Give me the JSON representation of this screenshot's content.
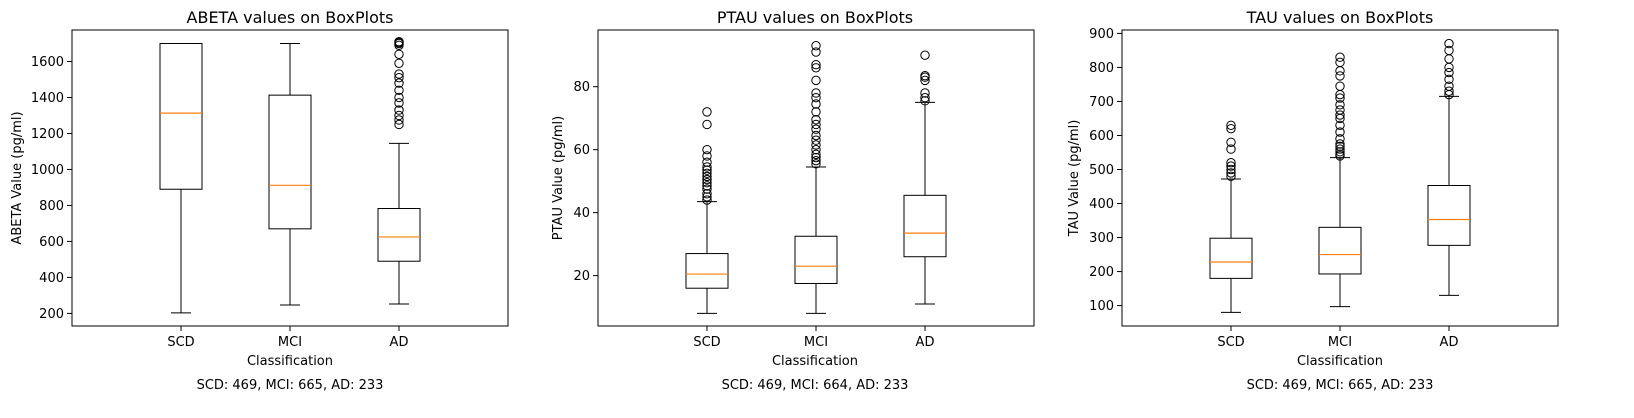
{
  "chart_data": [
    {
      "type": "boxplot",
      "title": "ABETA values on BoxPlots",
      "xlabel": "Classification",
      "ylabel": "ABETA Value (pg/ml)",
      "caption": "SCD: 469, MCI: 665, AD: 233",
      "categories": [
        "SCD",
        "MCI",
        "AD"
      ],
      "ylim": [
        130,
        1775
      ],
      "yticks": [
        200,
        400,
        600,
        800,
        1000,
        1200,
        1400,
        1600
      ],
      "boxes": [
        {
          "category": "SCD",
          "whisker_low": 203,
          "q1": 890,
          "median": 1313,
          "q3": 1700,
          "whisker_high": 1700,
          "outliers": []
        },
        {
          "category": "MCI",
          "whisker_low": 247,
          "q1": 670,
          "median": 912,
          "q3": 1413,
          "whisker_high": 1700,
          "outliers": []
        },
        {
          "category": "AD",
          "whisker_low": 252,
          "q1": 490,
          "median": 625,
          "q3": 783,
          "whisker_high": 1145,
          "outliers": [
            1250,
            1275,
            1300,
            1330,
            1370,
            1400,
            1440,
            1480,
            1510,
            1530,
            1590,
            1640,
            1690,
            1700,
            1705,
            1710
          ]
        }
      ],
      "grid": false,
      "colors": {
        "box": "#000000",
        "median": "#ff7f0e"
      }
    },
    {
      "type": "boxplot",
      "title": "PTAU values on BoxPlots",
      "xlabel": "Classification",
      "ylabel": "PTAU Value (pg/ml)",
      "caption": "SCD: 469, MCI: 664, AD: 233",
      "categories": [
        "SCD",
        "MCI",
        "AD"
      ],
      "ylim": [
        4,
        98
      ],
      "yticks": [
        20,
        40,
        60,
        80
      ],
      "boxes": [
        {
          "category": "SCD",
          "whisker_low": 8,
          "q1": 16,
          "median": 20.5,
          "q3": 27,
          "whisker_high": 43.5,
          "outliers": [
            44,
            45,
            46,
            47.5,
            48.5,
            49.5,
            50.5,
            51.5,
            52.5,
            53.5,
            54.5,
            56,
            58,
            60,
            68,
            72
          ]
        },
        {
          "category": "MCI",
          "whisker_low": 8,
          "q1": 17.5,
          "median": 23,
          "q3": 32.5,
          "whisker_high": 54.5,
          "outliers": [
            55.5,
            56.5,
            57.5,
            58.5,
            60,
            61.5,
            63,
            64.5,
            66.5,
            68,
            69.5,
            72,
            74.5,
            76.5,
            78,
            82,
            86,
            87,
            91,
            93
          ]
        },
        {
          "category": "AD",
          "whisker_low": 11,
          "q1": 26,
          "median": 33.5,
          "q3": 45.5,
          "whisker_high": 75,
          "outliers": [
            75.5,
            76.5,
            78,
            82,
            83,
            83.5,
            90
          ]
        }
      ],
      "grid": false,
      "colors": {
        "box": "#000000",
        "median": "#ff7f0e"
      }
    },
    {
      "type": "boxplot",
      "title": "TAU values on BoxPlots",
      "xlabel": "Classification",
      "ylabel": "TAU Value (pg/ml)",
      "caption": "SCD: 469, MCI: 665, AD: 233",
      "categories": [
        "SCD",
        "MCI",
        "AD"
      ],
      "ylim": [
        40,
        910
      ],
      "yticks": [
        100,
        200,
        300,
        400,
        500,
        600,
        700,
        800,
        900
      ],
      "boxes": [
        {
          "category": "SCD",
          "whisker_low": 80,
          "q1": 180,
          "median": 228,
          "q3": 298,
          "whisker_high": 472,
          "outliers": [
            480,
            490,
            500,
            510,
            520,
            560,
            580,
            620,
            630
          ]
        },
        {
          "category": "MCI",
          "whisker_low": 97,
          "q1": 193,
          "median": 250,
          "q3": 330,
          "whisker_high": 535,
          "outliers": [
            540,
            545,
            552,
            560,
            568,
            575,
            590,
            610,
            630,
            650,
            660,
            675,
            690,
            710,
            720,
            745,
            775,
            790,
            815,
            830
          ]
        },
        {
          "category": "AD",
          "whisker_low": 130,
          "q1": 277,
          "median": 353,
          "q3": 453,
          "whisker_high": 715,
          "outliers": [
            720,
            730,
            745,
            765,
            785,
            800,
            825,
            850,
            870
          ]
        }
      ],
      "grid": false,
      "colors": {
        "box": "#000000",
        "median": "#ff7f0e"
      }
    }
  ]
}
